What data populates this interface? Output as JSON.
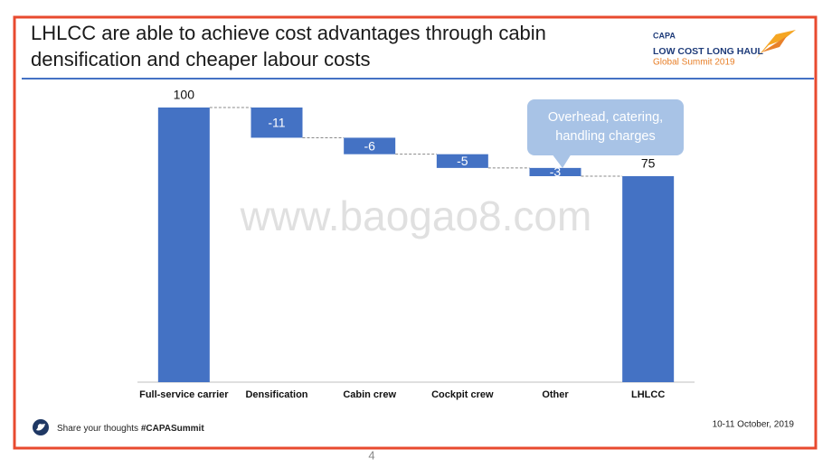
{
  "header": {
    "title": "LHLCC are able to achieve cost advantages through cabin densification and cheaper labour costs",
    "logo": {
      "brand": "CAPA",
      "line1": "LOW COST LONG HAUL",
      "line2": "Global Summit 2019"
    }
  },
  "chart_data": {
    "type": "waterfall",
    "categories": [
      "Full-service carrier",
      "Densification",
      "Cabin crew",
      "Cockpit crew",
      "Other",
      "LHLCC"
    ],
    "values": [
      100,
      -11,
      -6,
      -5,
      -3,
      75
    ],
    "color": "#4472c4",
    "annotation": "Overhead, catering, handling charges"
  },
  "watermark": "www.baogao8.com",
  "footer": {
    "share": "Share your thoughts",
    "hashtag": "#CAPASummit",
    "date": "10-11 October, 2019"
  },
  "page_number": "4"
}
